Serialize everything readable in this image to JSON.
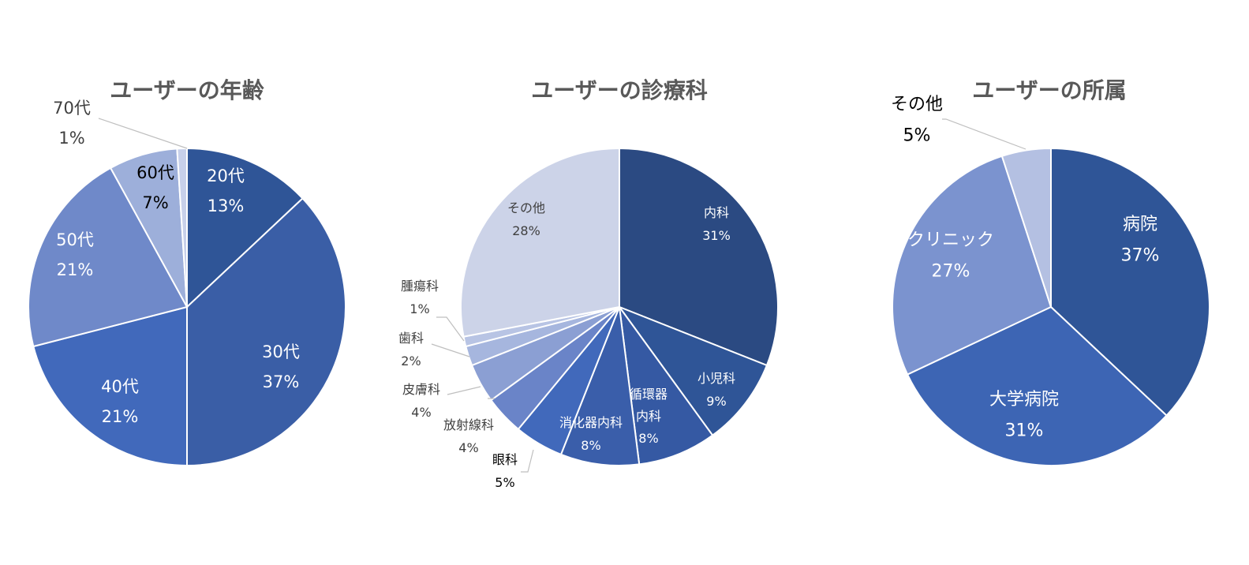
{
  "chart_data": [
    {
      "type": "pie",
      "title": "ユーザーの年齢",
      "slices": [
        {
          "label": "20代",
          "pct_label": "13%",
          "value": 13,
          "color": "#2f5597"
        },
        {
          "label": "30代",
          "pct_label": "37%",
          "value": 37,
          "color": "#3a5ea6"
        },
        {
          "label": "40代",
          "pct_label": "21%",
          "value": 21,
          "color": "#4169bb"
        },
        {
          "label": "50代",
          "pct_label": "21%",
          "value": 21,
          "color": "#6f89c9"
        },
        {
          "label": "60代",
          "pct_label": "7%",
          "value": 7,
          "color": "#9dafda"
        },
        {
          "label": "70代",
          "pct_label": "1%",
          "value": 1,
          "color": "#c7d0ea"
        }
      ]
    },
    {
      "type": "pie",
      "title": "ユーザーの診療科",
      "slices": [
        {
          "label": "内科",
          "pct_label": "31%",
          "value": 31,
          "color": "#2b4a82"
        },
        {
          "label": "小児科",
          "pct_label": "9%",
          "value": 9,
          "color": "#2f5597"
        },
        {
          "label": "循環器\n内科",
          "pct_label": "8%",
          "value": 8,
          "color": "#3559a3"
        },
        {
          "label": "消化器内科",
          "pct_label": "8%",
          "value": 8,
          "color": "#3a5eaa"
        },
        {
          "label": "眼科",
          "pct_label": "5%",
          "value": 5,
          "color": "#4169bb"
        },
        {
          "label": "放射線科",
          "pct_label": "4%",
          "value": 4,
          "color": "#6a84c8"
        },
        {
          "label": "皮膚科",
          "pct_label": "4%",
          "value": 4,
          "color": "#8b9fd3"
        },
        {
          "label": "歯科",
          "pct_label": "2%",
          "value": 2,
          "color": "#a6b6de"
        },
        {
          "label": "腫瘍科",
          "pct_label": "1%",
          "value": 1,
          "color": "#b8c4e4"
        },
        {
          "label": "その他",
          "pct_label": "28%",
          "value": 28,
          "color": "#ccd3e8"
        }
      ]
    },
    {
      "type": "pie",
      "title": "ユーザーの所属",
      "slices": [
        {
          "label": "病院",
          "pct_label": "37%",
          "value": 37,
          "color": "#2f5597"
        },
        {
          "label": "大学病院",
          "pct_label": "31%",
          "value": 31,
          "color": "#3d65b4"
        },
        {
          "label": "クリニック",
          "pct_label": "27%",
          "value": 27,
          "color": "#7b93cf"
        },
        {
          "label": "その他",
          "pct_label": "5%",
          "value": 5,
          "color": "#b4c0e2"
        }
      ]
    }
  ]
}
